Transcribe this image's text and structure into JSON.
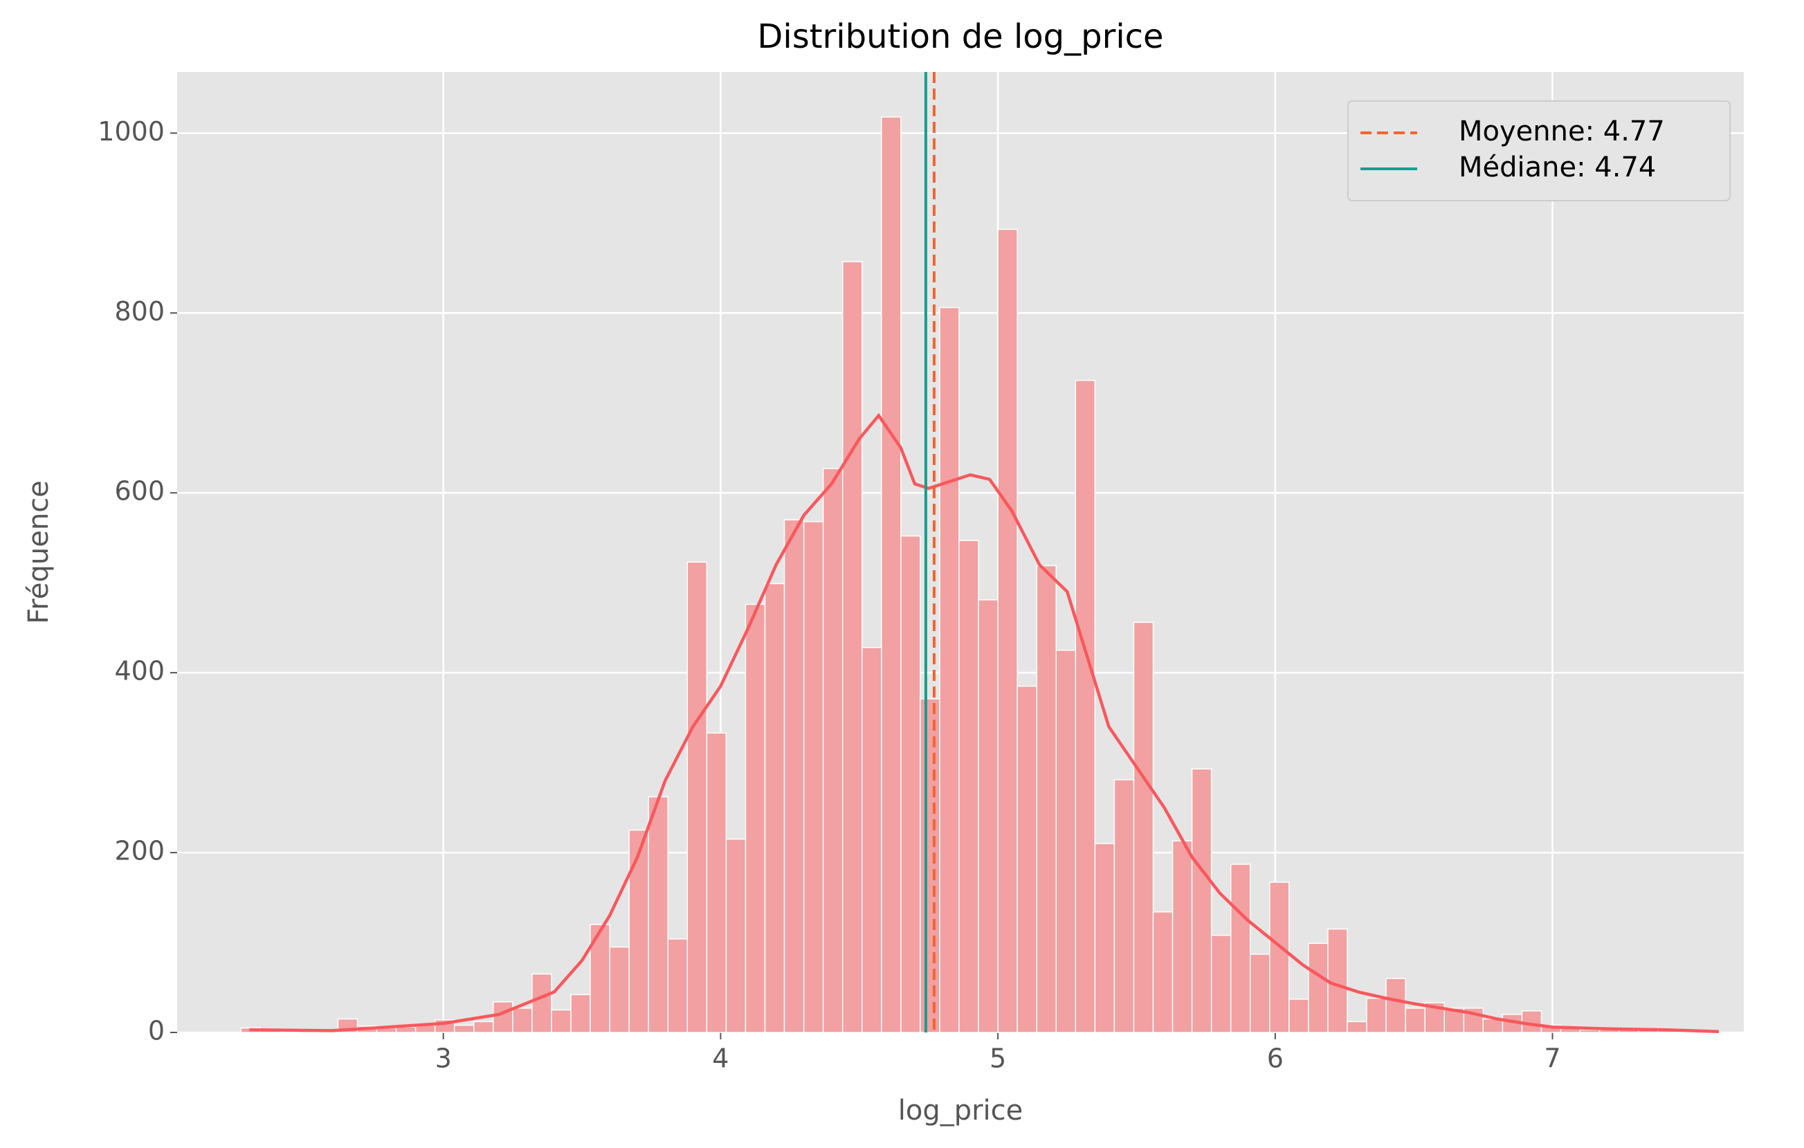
{
  "chart_data": {
    "type": "histogram",
    "title": "Distribution de log_price",
    "xlabel": "log_price",
    "ylabel": "Fréquence",
    "bins": [
      2.27,
      2.34,
      2.41,
      2.48,
      2.55,
      2.62,
      2.69,
      2.76,
      2.83,
      2.9,
      2.97,
      3.04,
      3.11,
      3.18,
      3.25,
      3.32,
      3.39,
      3.46,
      3.53,
      3.6,
      3.67,
      3.74,
      3.81,
      3.88,
      3.95,
      4.02,
      4.09,
      4.16,
      4.23,
      4.3,
      4.37,
      4.44,
      4.51,
      4.58,
      4.65,
      4.72,
      4.79,
      4.86,
      4.93,
      5.0,
      5.07,
      5.14,
      5.21,
      5.28,
      5.35,
      5.42,
      5.49,
      5.56,
      5.63,
      5.7,
      5.77,
      5.84,
      5.91,
      5.98,
      6.05,
      6.12,
      6.19,
      6.26,
      6.33,
      6.4,
      6.47,
      6.54,
      6.61,
      6.68,
      6.75,
      6.82,
      6.89,
      6.96,
      7.03,
      7.1,
      7.17,
      7.24,
      7.31,
      7.38,
      7.45,
      7.52
    ],
    "values": [
      5,
      2,
      1,
      2,
      3,
      15,
      7,
      5,
      6,
      8,
      14,
      8,
      12,
      34,
      27,
      65,
      25,
      42,
      120,
      95,
      225,
      262,
      104,
      523,
      333,
      215,
      476,
      499,
      570,
      568,
      627,
      857,
      428,
      1018,
      552,
      371,
      806,
      547,
      481,
      893,
      385,
      519,
      425,
      725,
      210,
      281,
      456,
      134,
      213,
      293,
      108,
      187,
      87,
      167,
      37,
      99,
      115,
      12,
      38,
      60,
      27,
      33,
      27,
      27,
      15,
      20,
      24,
      8,
      5,
      3,
      3,
      4,
      3,
      2,
      1
    ],
    "color": "#f2a0a1",
    "kde": {
      "x": [
        2.3,
        2.6,
        2.8,
        3.0,
        3.2,
        3.4,
        3.5,
        3.6,
        3.7,
        3.8,
        3.9,
        4.0,
        4.1,
        4.2,
        4.3,
        4.4,
        4.5,
        4.57,
        4.65,
        4.7,
        4.75,
        4.8,
        4.9,
        4.97,
        5.05,
        5.15,
        5.25,
        5.3,
        5.4,
        5.5,
        5.6,
        5.7,
        5.8,
        5.9,
        6.0,
        6.1,
        6.2,
        6.3,
        6.4,
        6.5,
        6.6,
        6.7,
        6.8,
        6.9,
        7.0,
        7.2,
        7.4,
        7.6
      ],
      "y": [
        3,
        2,
        6,
        10,
        20,
        45,
        80,
        130,
        195,
        280,
        340,
        385,
        450,
        520,
        575,
        610,
        660,
        686,
        650,
        610,
        605,
        610,
        620,
        615,
        580,
        520,
        490,
        440,
        340,
        295,
        250,
        195,
        155,
        125,
        100,
        75,
        55,
        45,
        38,
        32,
        27,
        22,
        15,
        10,
        6,
        4,
        3,
        1
      ],
      "color": "#f8585d"
    },
    "mean": {
      "value": 4.77,
      "label": "Moyenne: 4.77",
      "color": "#f26430"
    },
    "median": {
      "value": 4.74,
      "label": "Médiane: 4.74",
      "color": "#12a08e"
    },
    "xlim": [
      2.04,
      7.69
    ],
    "ylim": [
      0,
      1068
    ],
    "xticks": [
      3,
      4,
      5,
      6,
      7
    ],
    "yticks": [
      0,
      200,
      400,
      600,
      800,
      1000
    ],
    "grid": true,
    "legend": "upper right"
  }
}
